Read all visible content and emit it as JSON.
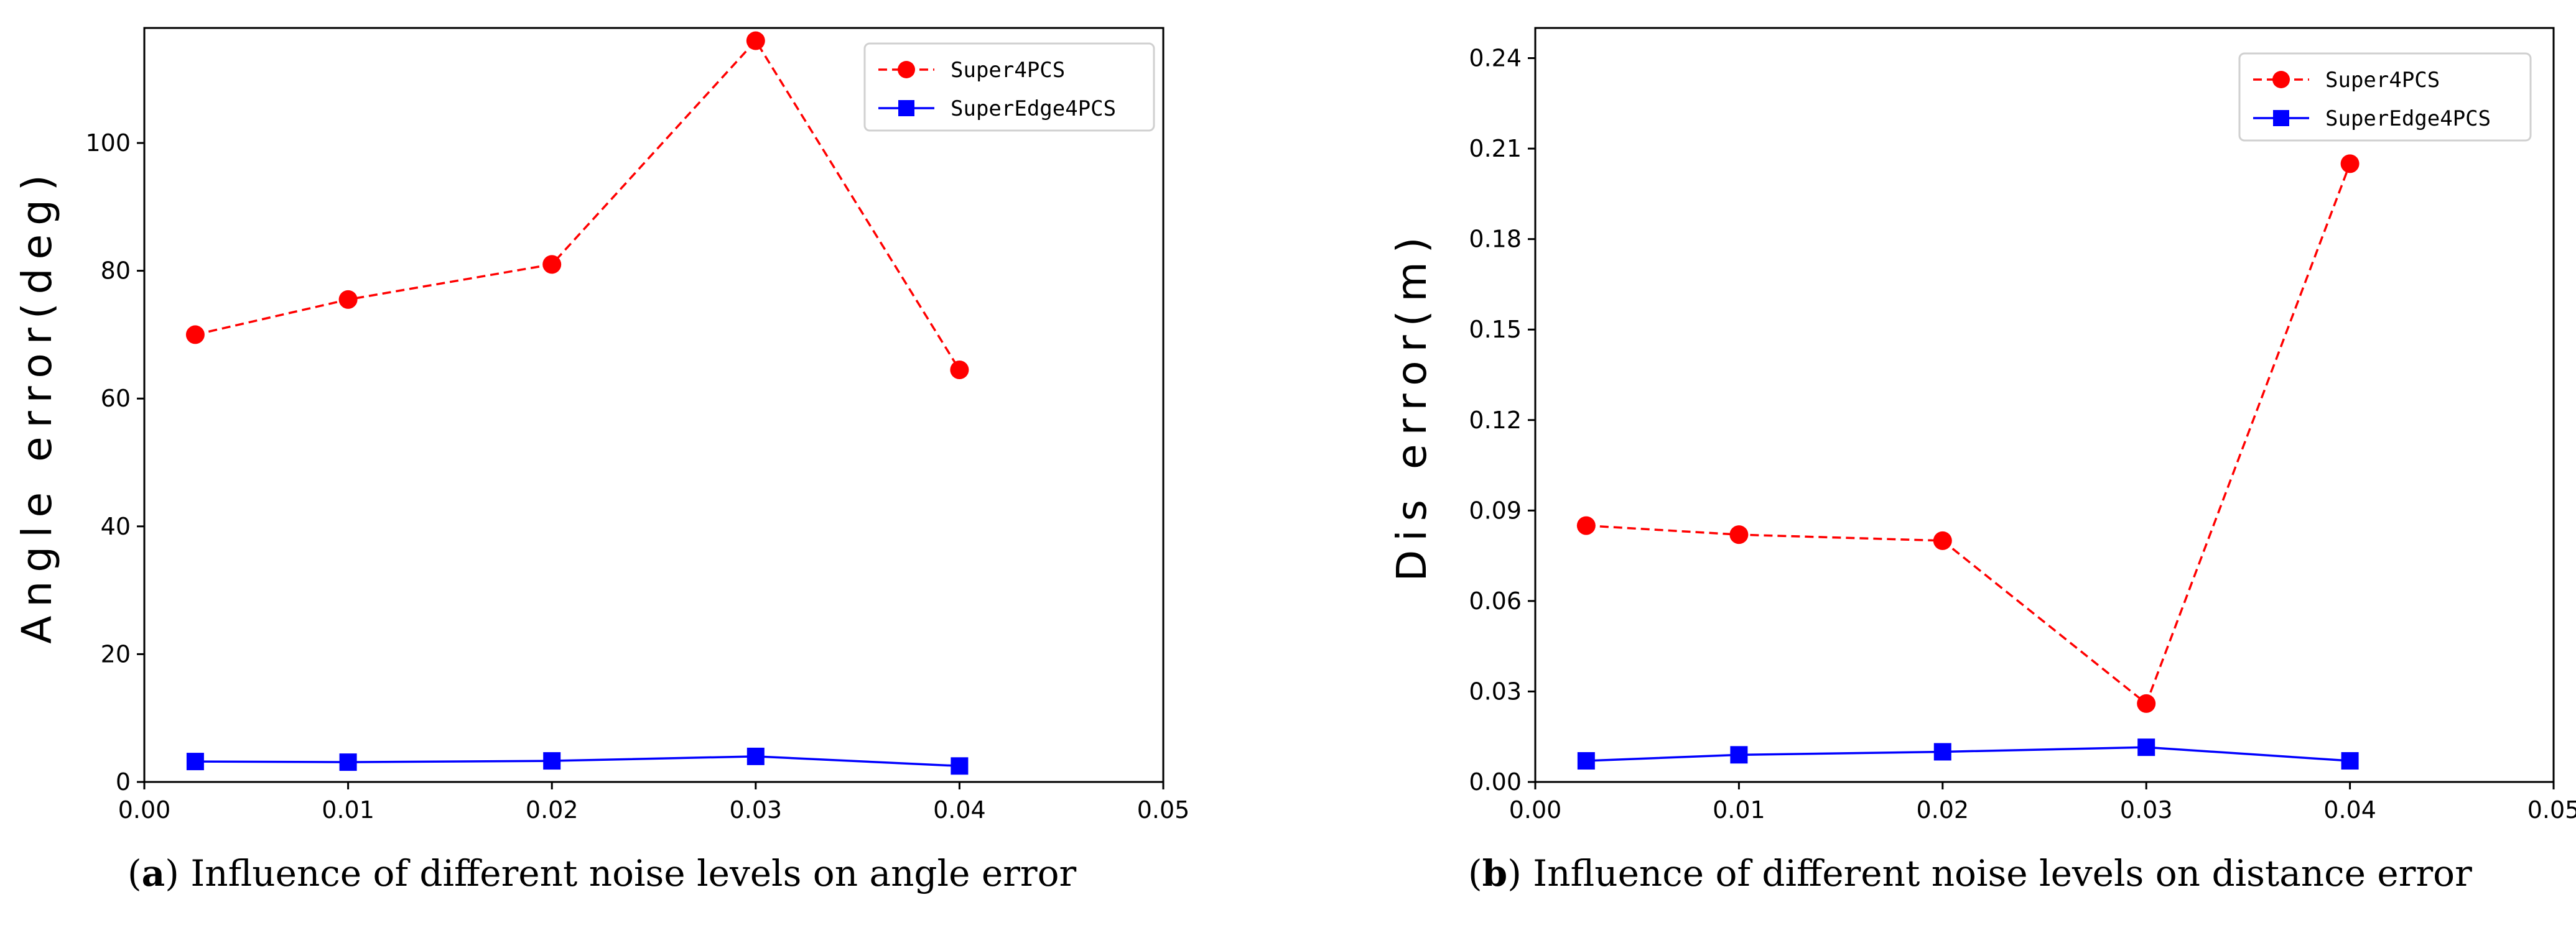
{
  "figure": {
    "captions": [
      {
        "tag": "a",
        "text": "Influence of different noise levels on angle error"
      },
      {
        "tag": "b",
        "text": "Influence of different noise levels on distance error"
      }
    ]
  },
  "chart_data": [
    {
      "type": "line",
      "title": "",
      "xlabel": "",
      "ylabel": "Angle error(deg)",
      "x": [
        0.0025,
        0.01,
        0.02,
        0.03,
        0.04
      ],
      "xlim": [
        0.0,
        0.05
      ],
      "ylim": [
        0,
        118
      ],
      "xticks": [
        0.0,
        0.01,
        0.02,
        0.03,
        0.04,
        0.05
      ],
      "xtick_labels": [
        "0.00",
        "0.01",
        "0.02",
        "0.03",
        "0.04",
        "0.05"
      ],
      "yticks": [
        0,
        20,
        40,
        60,
        80,
        100
      ],
      "ytick_labels": [
        "0",
        "20",
        "40",
        "60",
        "80",
        "100"
      ],
      "legend_position": "top-right",
      "series": [
        {
          "name": "Super4PCS",
          "values": [
            70,
            75.5,
            81,
            116,
            64.5
          ],
          "color": "#ff0000",
          "marker": "circle",
          "line_style": "dashed"
        },
        {
          "name": "SuperEdge4PCS",
          "values": [
            3.2,
            3.1,
            3.3,
            4.0,
            2.5
          ],
          "color": "#0000ff",
          "marker": "square",
          "line_style": "solid"
        }
      ]
    },
    {
      "type": "line",
      "title": "",
      "xlabel": "",
      "ylabel": "Dis error(m)",
      "x": [
        0.0025,
        0.01,
        0.02,
        0.03,
        0.04
      ],
      "xlim": [
        0.0,
        0.05
      ],
      "ylim": [
        0.0,
        0.25
      ],
      "xticks": [
        0.0,
        0.01,
        0.02,
        0.03,
        0.04,
        0.05
      ],
      "xtick_labels": [
        "0.00",
        "0.01",
        "0.02",
        "0.03",
        "0.04",
        "0.05"
      ],
      "yticks": [
        0.0,
        0.03,
        0.06,
        0.09,
        0.12,
        0.15,
        0.18,
        0.21,
        0.24
      ],
      "ytick_labels": [
        "0.00",
        "0.03",
        "0.06",
        "0.09",
        "0.12",
        "0.15",
        "0.18",
        "0.21",
        "0.24"
      ],
      "legend_position": "top-right",
      "series": [
        {
          "name": "Super4PCS",
          "values": [
            0.085,
            0.082,
            0.08,
            0.026,
            0.205
          ],
          "color": "#ff0000",
          "marker": "circle",
          "line_style": "dashed"
        },
        {
          "name": "SuperEdge4PCS",
          "values": [
            0.007,
            0.009,
            0.01,
            0.0115,
            0.007
          ],
          "color": "#0000ff",
          "marker": "square",
          "line_style": "solid"
        }
      ]
    }
  ]
}
